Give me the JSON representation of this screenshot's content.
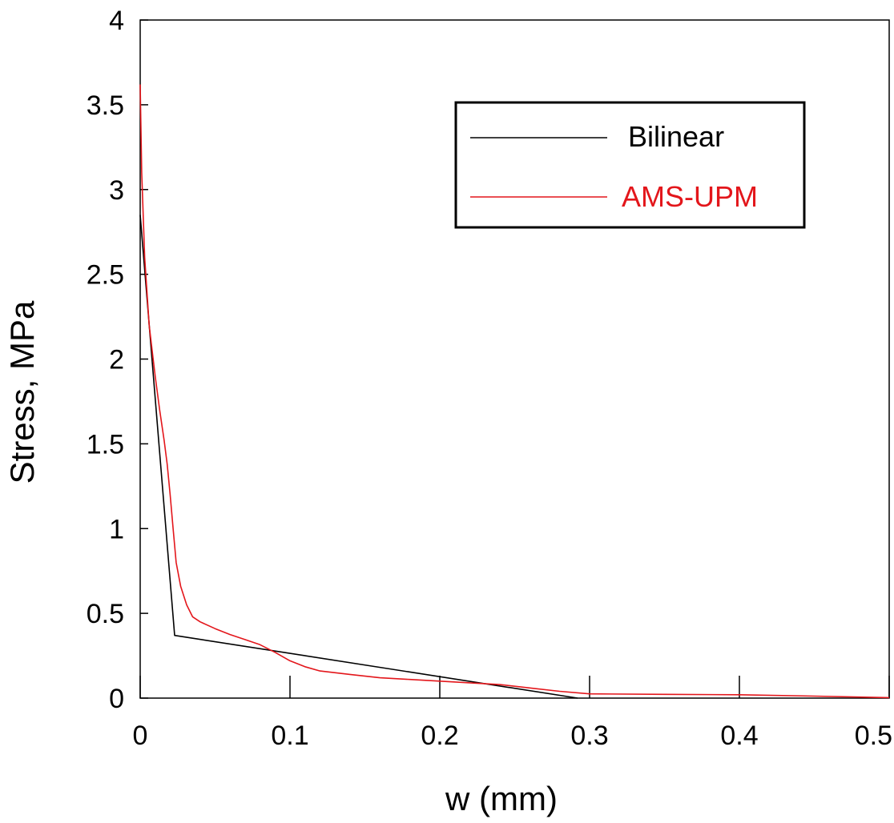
{
  "chart_data": {
    "type": "line",
    "title": "",
    "xlabel": "w (mm)",
    "ylabel": "Stress, MPa",
    "xlim": [
      0,
      0.5
    ],
    "ylim": [
      0,
      4
    ],
    "xticks": [
      "0",
      "0.1",
      "0.2",
      "0.3",
      "0.4",
      "0.5"
    ],
    "yticks": [
      "0",
      "0.5",
      "1",
      "1.5",
      "2",
      "2.5",
      "3",
      "3.5",
      "4"
    ],
    "grid": false,
    "legend_position": "top-right",
    "series": [
      {
        "name": "Bilinear",
        "color": "#000000",
        "points": [
          [
            0,
            2.85
          ],
          [
            0.023,
            0.37
          ],
          [
            0.292,
            0
          ]
        ]
      },
      {
        "name": "AMS-UPM",
        "color": "#e3161b",
        "points": [
          [
            0,
            3.62
          ],
          [
            0.001,
            3.1
          ],
          [
            0.003,
            2.6
          ],
          [
            0.006,
            2.2
          ],
          [
            0.01,
            1.9
          ],
          [
            0.013,
            1.7
          ],
          [
            0.016,
            1.52
          ],
          [
            0.018,
            1.38
          ],
          [
            0.02,
            1.2
          ],
          [
            0.022,
            1.0
          ],
          [
            0.024,
            0.8
          ],
          [
            0.027,
            0.66
          ],
          [
            0.031,
            0.55
          ],
          [
            0.035,
            0.48
          ],
          [
            0.04,
            0.45
          ],
          [
            0.05,
            0.41
          ],
          [
            0.06,
            0.375
          ],
          [
            0.07,
            0.345
          ],
          [
            0.08,
            0.315
          ],
          [
            0.09,
            0.27
          ],
          [
            0.1,
            0.22
          ],
          [
            0.11,
            0.185
          ],
          [
            0.12,
            0.16
          ],
          [
            0.14,
            0.14
          ],
          [
            0.16,
            0.12
          ],
          [
            0.18,
            0.11
          ],
          [
            0.2,
            0.1
          ],
          [
            0.22,
            0.09
          ],
          [
            0.24,
            0.08
          ],
          [
            0.26,
            0.06
          ],
          [
            0.28,
            0.04
          ],
          [
            0.3,
            0.025
          ],
          [
            0.35,
            0.022
          ],
          [
            0.4,
            0.02
          ],
          [
            0.45,
            0.012
          ],
          [
            0.5,
            0.003
          ]
        ]
      }
    ]
  }
}
